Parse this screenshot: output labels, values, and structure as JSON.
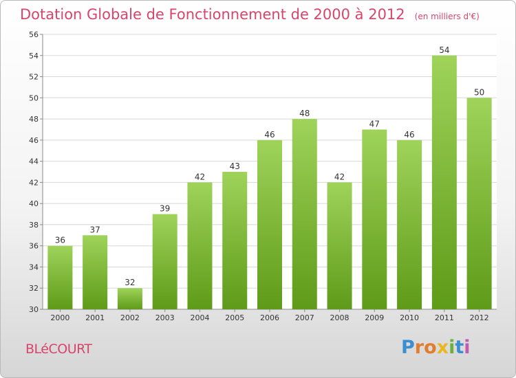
{
  "title": "Dotation Globale de Fonctionnement de 2000 à 2012",
  "subtitle": "(en milliers d'€)",
  "commune": "BLéCOURT",
  "logo": {
    "letters": [
      "P",
      "r",
      "o",
      "x",
      "i",
      "t",
      "i"
    ],
    "colors": [
      "#3b8fd0",
      "#e27d2e",
      "#e27d2e",
      "#e9b821",
      "#6ab03a",
      "#3b8fd0",
      "#c45ab0"
    ]
  },
  "colors": {
    "bar_top": "#9fd35a",
    "bar_bottom": "#5e9b18",
    "title": "#d8456a",
    "grid": "#d8d8d8"
  },
  "chart_data": {
    "type": "bar",
    "categories": [
      "2000",
      "2001",
      "2002",
      "2003",
      "2004",
      "2005",
      "2006",
      "2007",
      "2008",
      "2009",
      "2010",
      "2011",
      "2012"
    ],
    "values": [
      36,
      37,
      32,
      39,
      42,
      43,
      46,
      48,
      42,
      47,
      46,
      54,
      50
    ],
    "ylim": [
      30,
      56
    ],
    "yticks": [
      30,
      32,
      34,
      36,
      38,
      40,
      42,
      44,
      46,
      48,
      50,
      52,
      54,
      56
    ],
    "grid": true,
    "data_labels": true
  }
}
